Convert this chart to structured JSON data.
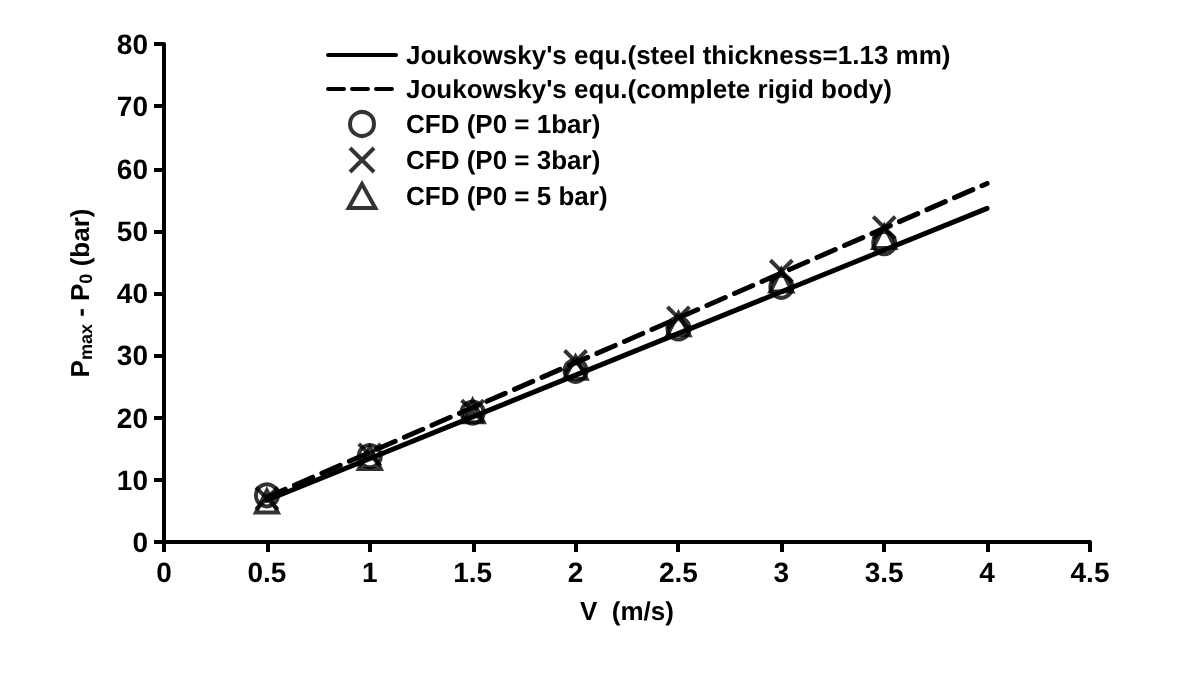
{
  "chart_data": {
    "type": "line",
    "xlabel": "V  (m/s)",
    "ylabel": "P$_{max}$ - P$_{0}$ (bar)",
    "xlim": [
      0,
      4.5
    ],
    "xticks": [
      0,
      0.5,
      1,
      1.5,
      2,
      2.5,
      3,
      3.5,
      4,
      4.5
    ],
    "ylim": [
      0,
      80
    ],
    "yticks": [
      0,
      10,
      20,
      30,
      40,
      50,
      60,
      70,
      80
    ],
    "grid": false,
    "legend": "top",
    "series": [
      {
        "name": "Joukowsky's equ.(steel thickness=1.13 mm)",
        "color": "#000000",
        "line_style": "solid",
        "marker": "none",
        "x": [
          0.5,
          4
        ],
        "values": [
          6.7,
          53.6
        ]
      },
      {
        "name": "Joukowsky's equ.(complete rigid body)",
        "color": "#000000",
        "line_style": "dashed",
        "marker": "none",
        "x": [
          0.5,
          4
        ],
        "values": [
          7.2,
          57.6
        ]
      },
      {
        "name": "CFD (P0 = 1bar)",
        "type": "scatter",
        "color": "#000000",
        "marker": "circle",
        "x": [
          0.5,
          1,
          1.5,
          2,
          2.5,
          3,
          3.5
        ],
        "values": [
          7.5,
          13.8,
          20.8,
          27.5,
          34.3,
          41,
          48
        ]
      },
      {
        "name": "CFD (P0 = 3bar)",
        "type": "scatter",
        "color": "#000000",
        "marker": "cross",
        "x": [
          0.5,
          1,
          1.5,
          2,
          2.5,
          3,
          3.5
        ],
        "values": [
          7,
          14,
          21,
          29,
          36,
          43.5,
          50.5
        ]
      },
      {
        "name": "CFD (P0 = 5 bar)",
        "type": "scatter",
        "color": "#000000",
        "marker": "triangle",
        "x": [
          0.5,
          1,
          1.5,
          2,
          2.5,
          3,
          3.5
        ],
        "values": [
          6.5,
          13.5,
          21,
          28,
          35,
          42,
          49
        ]
      }
    ]
  }
}
